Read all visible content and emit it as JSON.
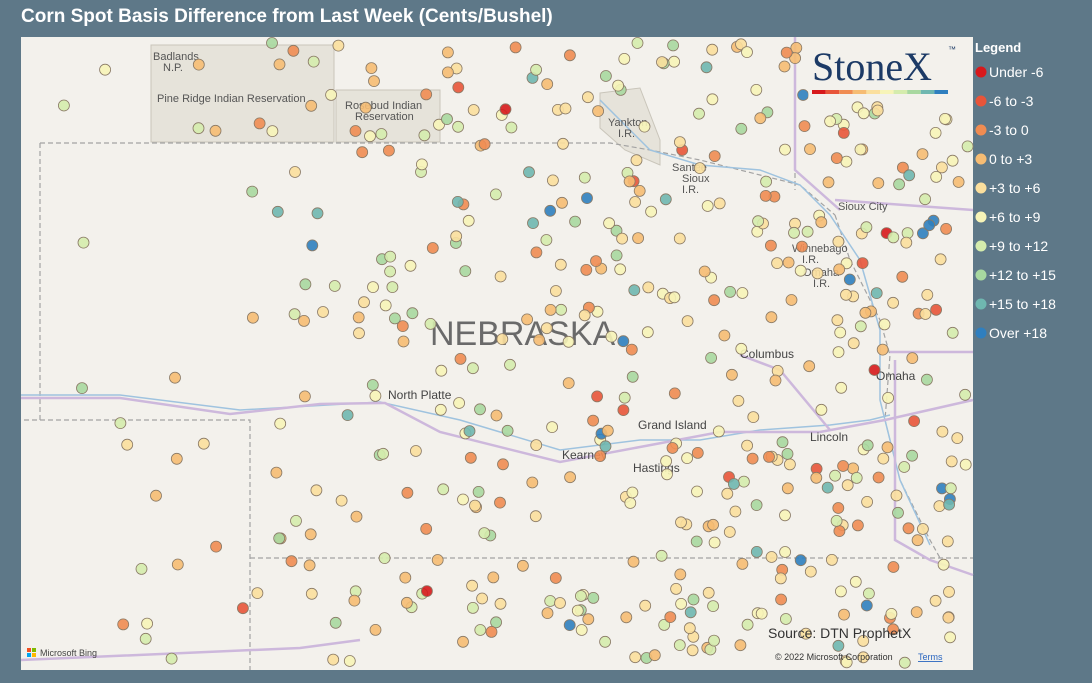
{
  "header": {
    "title": "Corn Spot Basis Difference from Last Week (Cents/Bushel)"
  },
  "logo": {
    "text": "StoneX",
    "mark": "™"
  },
  "legend": {
    "title": "Legend",
    "items": [
      {
        "label": "Under -6",
        "color": "#d7191c"
      },
      {
        "label": "-6 to -3",
        "color": "#e8553a"
      },
      {
        "label": "-3 to 0",
        "color": "#f08c52"
      },
      {
        "label": "0 to +3",
        "color": "#f6bc73"
      },
      {
        "label": "+3 to +6",
        "color": "#fbdf9d"
      },
      {
        "label": "+6 to +9",
        "color": "#f7f4b8"
      },
      {
        "label": "+9 to +12",
        "color": "#d5ecad"
      },
      {
        "label": "+12 to +15",
        "color": "#a8d8a0"
      },
      {
        "label": "+15 to +18",
        "color": "#6fb7b0"
      },
      {
        "label": "Over +18",
        "color": "#2f7fbf"
      }
    ]
  },
  "map": {
    "state_label": "NEBRASKA",
    "labels": [
      {
        "lines": [
          "Badlands",
          "N.P."
        ]
      },
      {
        "lines": [
          "Pine Ridge Indian Reservation"
        ]
      },
      {
        "lines": [
          "Rosebud Indian",
          "Reservation"
        ]
      },
      {
        "lines": [
          "Yankton",
          "I.R."
        ]
      },
      {
        "lines": [
          "Santee",
          "Sioux",
          "I.R."
        ]
      },
      {
        "lines": [
          "Sioux City"
        ]
      },
      {
        "lines": [
          "Winnebago",
          "I.R."
        ]
      },
      {
        "lines": [
          "Omaha",
          "I.R."
        ]
      },
      {
        "lines": [
          "Columbus"
        ]
      },
      {
        "lines": [
          "Omaha"
        ]
      },
      {
        "lines": [
          "North Platte"
        ]
      },
      {
        "lines": [
          "Grand Island"
        ]
      },
      {
        "lines": [
          "Lincoln"
        ]
      },
      {
        "lines": [
          "Kearney"
        ]
      },
      {
        "lines": [
          "Hastings"
        ]
      }
    ]
  },
  "footer": {
    "source": "Source: DTN ProphetX",
    "copyright": "© 2022 Microsoft Corporation",
    "terms": "Terms",
    "bing": "Microsoft Bing"
  }
}
